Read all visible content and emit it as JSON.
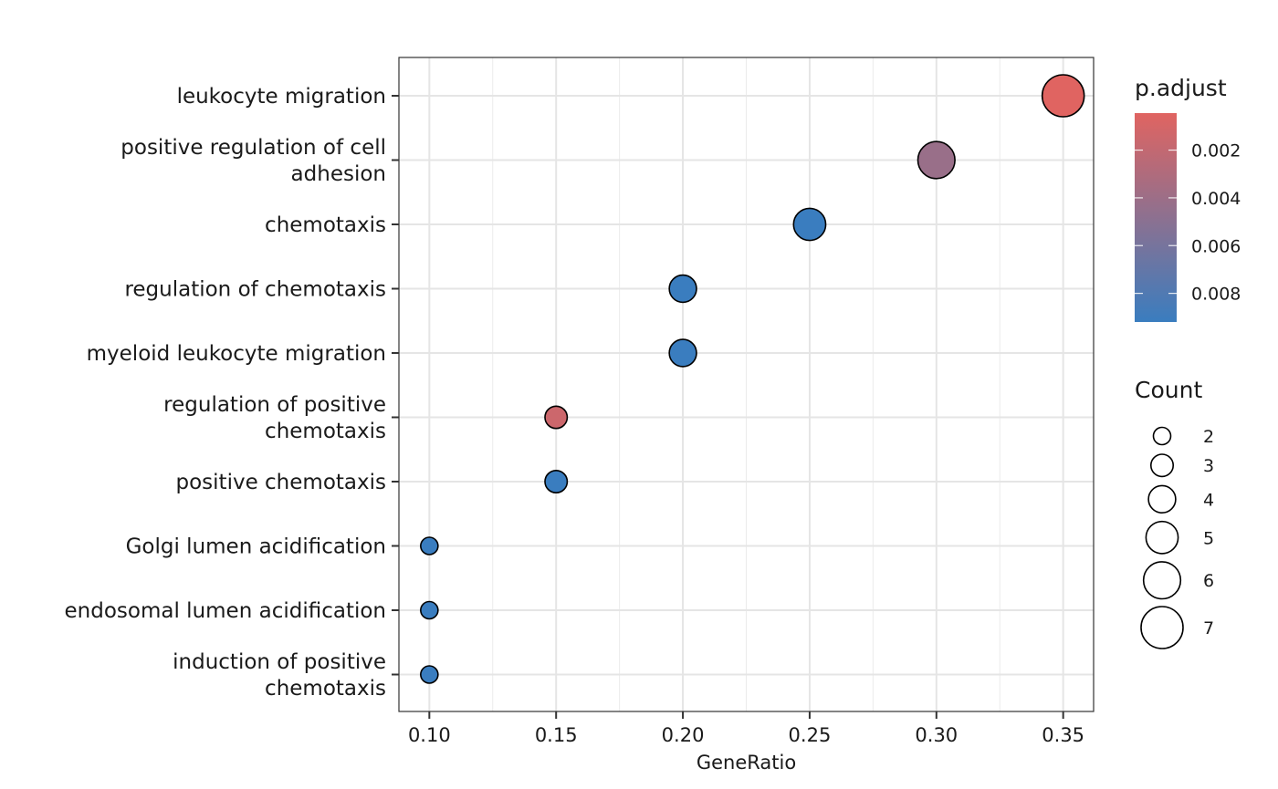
{
  "chart_data": {
    "type": "scatter",
    "xlabel": "GeneRatio",
    "ylabel": "",
    "xlim": [
      0.088,
      0.362
    ],
    "x_ticks": [
      0.1,
      0.15,
      0.2,
      0.25,
      0.3,
      0.35
    ],
    "x_tick_labels": [
      "0.10",
      "0.15",
      "0.20",
      "0.25",
      "0.30",
      "0.35"
    ],
    "grid": true,
    "categories": [
      [
        "leukocyte migration"
      ],
      [
        "positive regulation of cell",
        "adhesion"
      ],
      [
        "chemotaxis"
      ],
      [
        "regulation of chemotaxis"
      ],
      [
        "myeloid leukocyte migration"
      ],
      [
        "regulation of positive",
        "chemotaxis"
      ],
      [
        "positive chemotaxis"
      ],
      [
        "Golgi lumen acidification"
      ],
      [
        "endosomal lumen acidification"
      ],
      [
        "induction of positive",
        "chemotaxis"
      ]
    ],
    "points": [
      {
        "x": 0.35,
        "count": 7,
        "p_adjust": 0.00045
      },
      {
        "x": 0.3,
        "count": 6,
        "p_adjust": 0.0042
      },
      {
        "x": 0.25,
        "count": 5,
        "p_adjust": 0.0092
      },
      {
        "x": 0.2,
        "count": 4,
        "p_adjust": 0.0092
      },
      {
        "x": 0.2,
        "count": 4,
        "p_adjust": 0.0092
      },
      {
        "x": 0.15,
        "count": 3,
        "p_adjust": 0.0015
      },
      {
        "x": 0.15,
        "count": 3,
        "p_adjust": 0.0092
      },
      {
        "x": 0.1,
        "count": 2,
        "p_adjust": 0.0092
      },
      {
        "x": 0.1,
        "count": 2,
        "p_adjust": 0.0092
      },
      {
        "x": 0.1,
        "count": 2,
        "p_adjust": 0.0092
      }
    ],
    "color_legend": {
      "title": "p.adjust",
      "range": [
        0.00045,
        0.0092
      ],
      "ticks": [
        0.002,
        0.004,
        0.006,
        0.008
      ],
      "tick_labels": [
        "0.002",
        "0.004",
        "0.006",
        "0.008"
      ],
      "low_color": "#e06461",
      "high_color": "#3a7dbf"
    },
    "size_legend": {
      "title": "Count",
      "values": [
        2,
        3,
        4,
        5,
        6,
        7
      ],
      "labels": [
        "2",
        "3",
        "4",
        "5",
        "6",
        "7"
      ]
    },
    "legend_position": "right"
  }
}
